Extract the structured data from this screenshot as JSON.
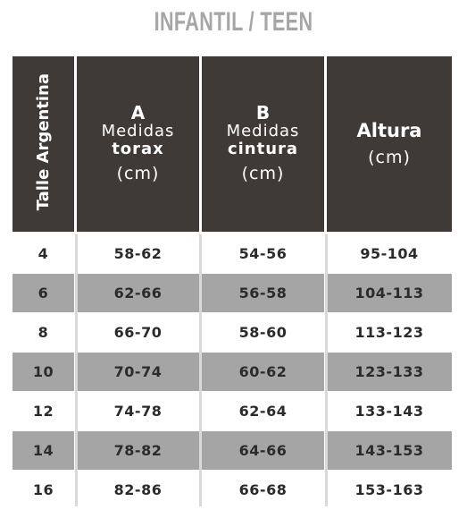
{
  "title": "INFANTIL / TEEN",
  "header": {
    "col0": "Talle Argentina",
    "col1": {
      "letter": "A",
      "line1": "Medidas",
      "line2": "torax",
      "unit": "(cm)"
    },
    "col2": {
      "letter": "B",
      "line1": "Medidas",
      "line2": "cintura",
      "unit": "(cm)"
    },
    "col3": {
      "title": "Altura",
      "unit": "(cm)"
    }
  },
  "rows": [
    {
      "talle": "4",
      "torax": "58-62",
      "cintura": "54-56",
      "altura": "95-104"
    },
    {
      "talle": "6",
      "torax": "62-66",
      "cintura": "56-58",
      "altura": "104-113"
    },
    {
      "talle": "8",
      "torax": "66-70",
      "cintura": "58-60",
      "altura": "113-123"
    },
    {
      "talle": "10",
      "torax": "70-74",
      "cintura": "60-62",
      "altura": "123-133"
    },
    {
      "talle": "12",
      "torax": "74-78",
      "cintura": "62-64",
      "altura": "133-143"
    },
    {
      "talle": "14",
      "torax": "78-82",
      "cintura": "64-66",
      "altura": "143-153"
    },
    {
      "talle": "16",
      "torax": "82-86",
      "cintura": "66-68",
      "altura": "153-163"
    }
  ],
  "colors": {
    "header_bg": "#403a36",
    "shaded_row": "#a5a5a5",
    "title": "#a6a6a6"
  }
}
